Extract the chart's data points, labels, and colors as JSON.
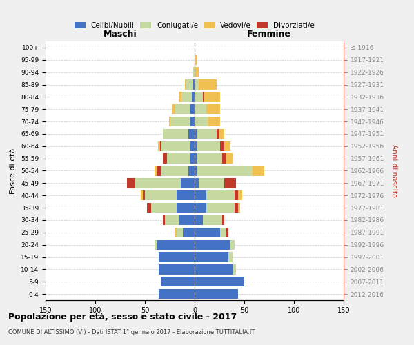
{
  "age_groups": [
    "100+",
    "95-99",
    "90-94",
    "85-89",
    "80-84",
    "75-79",
    "70-74",
    "65-69",
    "60-64",
    "55-59",
    "50-54",
    "45-49",
    "40-44",
    "35-39",
    "30-34",
    "25-29",
    "20-24",
    "15-19",
    "10-14",
    "5-9",
    "0-4"
  ],
  "birth_years": [
    "≤ 1916",
    "1917-1921",
    "1922-1926",
    "1927-1931",
    "1932-1936",
    "1937-1941",
    "1942-1946",
    "1947-1951",
    "1952-1956",
    "1957-1961",
    "1962-1966",
    "1967-1971",
    "1972-1976",
    "1977-1981",
    "1982-1986",
    "1987-1991",
    "1992-1996",
    "1997-2001",
    "2002-2006",
    "2007-2011",
    "2012-2016"
  ],
  "maschi_celibi": [
    0,
    0,
    0,
    2,
    3,
    4,
    4,
    6,
    5,
    4,
    6,
    14,
    18,
    18,
    16,
    12,
    38,
    36,
    36,
    34,
    36
  ],
  "maschi_coniugati": [
    0,
    0,
    2,
    6,
    10,
    16,
    20,
    26,
    28,
    24,
    28,
    46,
    32,
    26,
    14,
    6,
    2,
    0,
    0,
    0,
    0
  ],
  "maschi_vedovi": [
    0,
    0,
    0,
    2,
    2,
    2,
    2,
    0,
    2,
    0,
    2,
    0,
    2,
    0,
    0,
    2,
    0,
    0,
    0,
    0,
    0
  ],
  "maschi_divorziati": [
    0,
    0,
    0,
    0,
    0,
    0,
    0,
    0,
    2,
    4,
    4,
    8,
    2,
    4,
    2,
    0,
    0,
    0,
    0,
    0,
    0
  ],
  "femmine_nubili": [
    0,
    0,
    0,
    0,
    0,
    0,
    0,
    2,
    2,
    2,
    2,
    4,
    12,
    12,
    8,
    26,
    36,
    34,
    38,
    50,
    44
  ],
  "femmine_coniugate": [
    0,
    0,
    0,
    4,
    8,
    12,
    14,
    20,
    24,
    26,
    56,
    26,
    28,
    28,
    20,
    6,
    4,
    4,
    4,
    0,
    0
  ],
  "femmine_vedove": [
    0,
    2,
    4,
    18,
    16,
    14,
    12,
    6,
    6,
    6,
    12,
    0,
    4,
    2,
    0,
    0,
    0,
    0,
    0,
    0,
    0
  ],
  "femmine_divorziate": [
    0,
    0,
    0,
    0,
    2,
    0,
    0,
    2,
    4,
    4,
    0,
    12,
    4,
    4,
    2,
    2,
    0,
    0,
    0,
    0,
    0
  ],
  "color_celibi": "#4472c4",
  "color_coniugati": "#c5d9a0",
  "color_vedovi": "#f0c050",
  "color_divorziati": "#c0392b",
  "title": "Popolazione per età, sesso e stato civile - 2017",
  "subtitle": "COMUNE DI ALTISSIMO (VI) - Dati ISTAT 1° gennaio 2017 - Elaborazione TUTTITALIA.IT",
  "xlabel_left": "Maschi",
  "xlabel_right": "Femmine",
  "ylabel_left": "Fasce di età",
  "ylabel_right": "Anni di nascita",
  "xlim": 150,
  "bg_color": "#f0f0f0",
  "plot_bg_color": "#ffffff"
}
